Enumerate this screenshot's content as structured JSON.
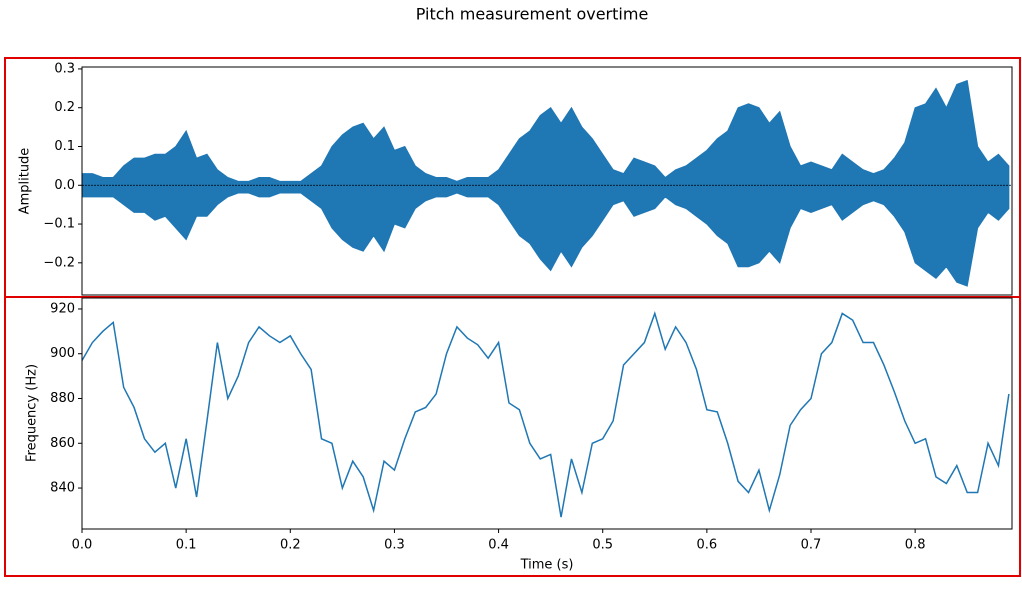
{
  "chart_data": [
    {
      "type": "area",
      "title": "Pitch measurement overtime",
      "ylabel": "Amplitude",
      "color": "#1f77b4",
      "x": [
        0,
        0.01,
        0.02,
        0.03,
        0.04,
        0.05,
        0.06,
        0.07,
        0.08,
        0.09,
        0.1,
        0.11,
        0.12,
        0.13,
        0.14,
        0.15,
        0.16,
        0.17,
        0.18,
        0.19,
        0.2,
        0.21,
        0.22,
        0.23,
        0.24,
        0.25,
        0.26,
        0.27,
        0.28,
        0.29,
        0.3,
        0.31,
        0.32,
        0.33,
        0.34,
        0.35,
        0.36,
        0.37,
        0.38,
        0.39,
        0.4,
        0.41,
        0.42,
        0.43,
        0.44,
        0.45,
        0.46,
        0.47,
        0.48,
        0.49,
        0.5,
        0.51,
        0.52,
        0.53,
        0.54,
        0.55,
        0.56,
        0.57,
        0.58,
        0.59,
        0.6,
        0.61,
        0.62,
        0.63,
        0.64,
        0.65,
        0.66,
        0.67,
        0.68,
        0.69,
        0.7,
        0.71,
        0.72,
        0.73,
        0.74,
        0.75,
        0.76,
        0.77,
        0.78,
        0.79,
        0.8,
        0.81,
        0.82,
        0.83,
        0.84,
        0.85,
        0.86,
        0.87,
        0.88,
        0.89
      ],
      "series": [
        {
          "values": [
            0.03,
            0.03,
            0.02,
            0.02,
            0.05,
            0.07,
            0.07,
            0.08,
            0.08,
            0.1,
            0.14,
            0.07,
            0.08,
            0.04,
            0.02,
            0.01,
            0.01,
            0.02,
            0.02,
            0.01,
            0.01,
            0.01,
            0.03,
            0.05,
            0.1,
            0.13,
            0.15,
            0.16,
            0.12,
            0.15,
            0.09,
            0.1,
            0.05,
            0.03,
            0.02,
            0.02,
            0.01,
            0.02,
            0.02,
            0.02,
            0.04,
            0.08,
            0.12,
            0.14,
            0.18,
            0.2,
            0.16,
            0.2,
            0.15,
            0.12,
            0.08,
            0.04,
            0.03,
            0.07,
            0.06,
            0.05,
            0.02,
            0.04,
            0.05,
            0.07,
            0.09,
            0.12,
            0.14,
            0.2,
            0.21,
            0.2,
            0.16,
            0.19,
            0.1,
            0.05,
            0.06,
            0.05,
            0.04,
            0.08,
            0.06,
            0.04,
            0.03,
            0.04,
            0.07,
            0.11,
            0.2,
            0.21,
            0.25,
            0.2,
            0.26,
            0.27,
            0.1,
            0.06,
            0.08,
            0.05
          ]
        },
        {
          "values": [
            -0.03,
            -0.03,
            -0.03,
            -0.03,
            -0.05,
            -0.07,
            -0.07,
            -0.09,
            -0.08,
            -0.11,
            -0.14,
            -0.08,
            -0.08,
            -0.05,
            -0.03,
            -0.02,
            -0.02,
            -0.03,
            -0.03,
            -0.02,
            -0.02,
            -0.02,
            -0.04,
            -0.06,
            -0.11,
            -0.14,
            -0.16,
            -0.17,
            -0.13,
            -0.17,
            -0.1,
            -0.11,
            -0.06,
            -0.04,
            -0.03,
            -0.03,
            -0.02,
            -0.03,
            -0.03,
            -0.03,
            -0.05,
            -0.09,
            -0.13,
            -0.15,
            -0.19,
            -0.22,
            -0.17,
            -0.21,
            -0.16,
            -0.13,
            -0.09,
            -0.05,
            -0.04,
            -0.08,
            -0.07,
            -0.06,
            -0.03,
            -0.05,
            -0.06,
            -0.08,
            -0.1,
            -0.13,
            -0.15,
            -0.21,
            -0.21,
            -0.2,
            -0.17,
            -0.2,
            -0.11,
            -0.06,
            -0.07,
            -0.06,
            -0.05,
            -0.09,
            -0.07,
            -0.05,
            -0.04,
            -0.05,
            -0.08,
            -0.12,
            -0.2,
            -0.22,
            -0.24,
            -0.21,
            -0.25,
            -0.26,
            -0.11,
            -0.07,
            -0.09,
            -0.06
          ]
        }
      ],
      "hline": 0,
      "xlim": [
        0,
        0.893
      ],
      "ylim": [
        -0.283,
        0.305
      ],
      "yticks": [
        {
          "value": -0.2,
          "label": "−0.2"
        },
        {
          "value": -0.1,
          "label": "−0.1"
        },
        {
          "value": 0,
          "label": "0.0"
        },
        0.1,
        0.2,
        0.3
      ]
    },
    {
      "type": "line",
      "ylabel": "Frequency (Hz)",
      "xlabel": "Time (s)",
      "color": "#1f77b4",
      "x": [
        0,
        0.01,
        0.02,
        0.03,
        0.04,
        0.05,
        0.06,
        0.07,
        0.08,
        0.09,
        0.1,
        0.11,
        0.12,
        0.13,
        0.14,
        0.15,
        0.16,
        0.17,
        0.18,
        0.19,
        0.2,
        0.21,
        0.22,
        0.23,
        0.24,
        0.25,
        0.26,
        0.27,
        0.28,
        0.29,
        0.3,
        0.31,
        0.32,
        0.33,
        0.34,
        0.35,
        0.36,
        0.37,
        0.38,
        0.39,
        0.4,
        0.41,
        0.42,
        0.43,
        0.44,
        0.45,
        0.46,
        0.47,
        0.48,
        0.49,
        0.5,
        0.51,
        0.52,
        0.53,
        0.54,
        0.55,
        0.56,
        0.57,
        0.58,
        0.59,
        0.6,
        0.61,
        0.62,
        0.63,
        0.64,
        0.65,
        0.66,
        0.67,
        0.68,
        0.69,
        0.7,
        0.71,
        0.72,
        0.73,
        0.74,
        0.75,
        0.76,
        0.77,
        0.78,
        0.79,
        0.8,
        0.81,
        0.82,
        0.83,
        0.84,
        0.85,
        0.86,
        0.87,
        0.88,
        0.89
      ],
      "series": [
        {
          "values": [
            897,
            905,
            910,
            914,
            885,
            876,
            862,
            856,
            860,
            840,
            862,
            836,
            870,
            905,
            880,
            890,
            905,
            912,
            908,
            905,
            908,
            900,
            893,
            862,
            860,
            840,
            852,
            845,
            830,
            852,
            848,
            862,
            874,
            876,
            882,
            900,
            912,
            907,
            904,
            898,
            905,
            878,
            875,
            860,
            853,
            855,
            827,
            853,
            838,
            860,
            862,
            870,
            895,
            900,
            905,
            918,
            902,
            912,
            905,
            893,
            875,
            874,
            860,
            843,
            838,
            848,
            830,
            846,
            868,
            875,
            880,
            900,
            905,
            918,
            915,
            905,
            905,
            895,
            883,
            870,
            860,
            862,
            845,
            842,
            850,
            838,
            838,
            860,
            850,
            882
          ]
        }
      ],
      "xlim": [
        0,
        0.893
      ],
      "ylim": [
        821.7,
        924.9
      ],
      "xticks": [
        {
          "value": 0,
          "label": "0.0"
        },
        0.1,
        0.2,
        0.3,
        0.4,
        0.5,
        0.6,
        0.7,
        0.8
      ],
      "yticks": [
        840,
        860,
        880,
        900,
        920
      ]
    }
  ]
}
